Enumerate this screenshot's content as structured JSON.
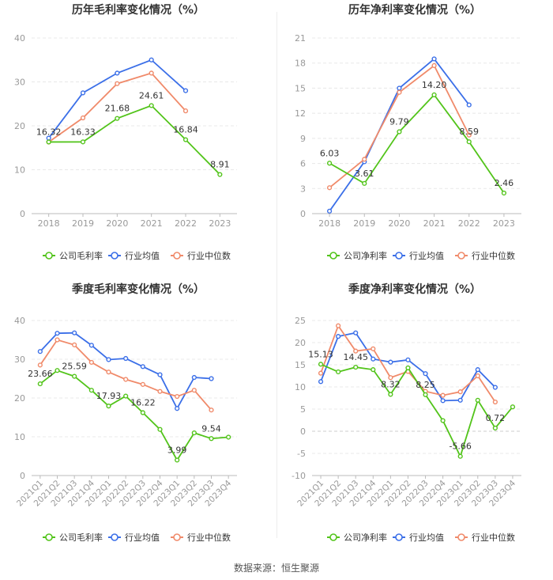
{
  "source": "数据来源：恒生聚源",
  "colors": {
    "company": "#52c41a",
    "avg": "#3b6fe8",
    "median": "#f08a6a",
    "axis": "#999999",
    "grid": "#e8e8e8"
  },
  "legend": [
    "公司毛利率",
    "行业均值",
    "行业中位数"
  ],
  "chart_data": [
    {
      "type": "line",
      "title": "历年毛利率变化情况（%）",
      "categories": [
        "2018",
        "2019",
        "2020",
        "2021",
        "2022",
        "2023"
      ],
      "ylim": [
        0,
        40
      ],
      "yticks": [
        0,
        10,
        20,
        30,
        40
      ],
      "legend": [
        "公司毛利率",
        "行业均值",
        "行业中位数"
      ],
      "series": [
        {
          "name": "公司毛利率",
          "values": [
            16.32,
            16.33,
            21.68,
            24.61,
            16.84,
            8.91
          ],
          "labels": [
            "16.32",
            "16.33",
            "21.68",
            "24.61",
            "16.84",
            "8.91"
          ]
        },
        {
          "name": "行业均值",
          "values": [
            17.2,
            27.5,
            32.0,
            35.0,
            28.0,
            null
          ]
        },
        {
          "name": "行业中位数",
          "values": [
            16.3,
            21.8,
            29.6,
            32.0,
            23.4,
            null
          ]
        }
      ]
    },
    {
      "type": "line",
      "title": "历年净利率变化情况（%）",
      "categories": [
        "2018",
        "2019",
        "2020",
        "2021",
        "2022",
        "2023"
      ],
      "ylim": [
        0,
        21
      ],
      "yticks": [
        0,
        3,
        6,
        9,
        12,
        15,
        18,
        21
      ],
      "legend": [
        "公司净利率",
        "行业均值",
        "行业中位数"
      ],
      "series": [
        {
          "name": "公司净利率",
          "values": [
            6.03,
            3.61,
            9.79,
            14.2,
            8.59,
            2.46
          ],
          "labels": [
            "6.03",
            "3.61",
            "9.79",
            "14.20",
            "8.59",
            "2.46"
          ]
        },
        {
          "name": "行业均值",
          "values": [
            0.3,
            6.2,
            15.0,
            18.5,
            13.0,
            null
          ]
        },
        {
          "name": "行业中位数",
          "values": [
            3.1,
            6.5,
            14.5,
            17.7,
            9.4,
            null
          ]
        }
      ]
    },
    {
      "type": "line",
      "title": "季度毛利率变化情况（%）",
      "categories": [
        "2021Q1",
        "2021Q2",
        "2021Q3",
        "2021Q4",
        "2022Q1",
        "2022Q2",
        "2022Q3",
        "2022Q4",
        "2023Q1",
        "2023Q2",
        "2023Q3",
        "2023Q4"
      ],
      "ylim": [
        0,
        40
      ],
      "yticks": [
        0,
        10,
        20,
        30,
        40
      ],
      "legend": [
        "公司毛利率",
        "行业均值",
        "行业中位数"
      ],
      "series": [
        {
          "name": "公司毛利率",
          "values": [
            23.66,
            27.1,
            25.59,
            22.0,
            17.93,
            20.5,
            16.22,
            11.9,
            3.99,
            11.0,
            9.54,
            9.9
          ],
          "labels": [
            "23.66",
            "",
            "25.59",
            "",
            "17.93",
            "",
            "16.22",
            "",
            "3.99",
            "",
            "9.54",
            ""
          ]
        },
        {
          "name": "行业均值",
          "values": [
            32.0,
            36.7,
            36.8,
            33.6,
            29.9,
            30.2,
            28.1,
            26.0,
            17.3,
            25.3,
            25.0,
            null
          ]
        },
        {
          "name": "行业中位数",
          "values": [
            28.5,
            35.0,
            33.7,
            29.2,
            26.7,
            24.8,
            23.5,
            21.7,
            20.4,
            22.0,
            16.9,
            null
          ]
        }
      ]
    },
    {
      "type": "line",
      "title": "季度净利率变化情况（%）",
      "categories": [
        "2021Q1",
        "2021Q2",
        "2021Q3",
        "2021Q4",
        "2022Q1",
        "2022Q2",
        "2022Q3",
        "2022Q4",
        "2023Q1",
        "2023Q2",
        "2023Q3",
        "2023Q4"
      ],
      "ylim": [
        -10,
        25
      ],
      "yticks": [
        -10,
        -5,
        0,
        5,
        10,
        15,
        20,
        25
      ],
      "legend": [
        "公司净利率",
        "行业均值",
        "行业中位数"
      ],
      "series": [
        {
          "name": "公司净利率",
          "values": [
            15.13,
            13.4,
            14.45,
            13.9,
            8.32,
            14.3,
            8.25,
            2.4,
            -5.66,
            7.0,
            0.72,
            5.5
          ],
          "labels": [
            "15.13",
            "",
            "14.45",
            "",
            "8.32",
            "",
            "8.25",
            "",
            "-5.66",
            "",
            "0.72",
            ""
          ]
        },
        {
          "name": "行业均值",
          "values": [
            11.2,
            21.4,
            22.2,
            16.3,
            15.6,
            16.1,
            13.0,
            6.9,
            7.0,
            13.9,
            9.9,
            null
          ]
        },
        {
          "name": "行业中位数",
          "values": [
            13.1,
            23.8,
            18.1,
            18.6,
            12.1,
            13.5,
            9.0,
            8.1,
            8.9,
            12.5,
            6.6,
            null
          ]
        }
      ]
    }
  ]
}
